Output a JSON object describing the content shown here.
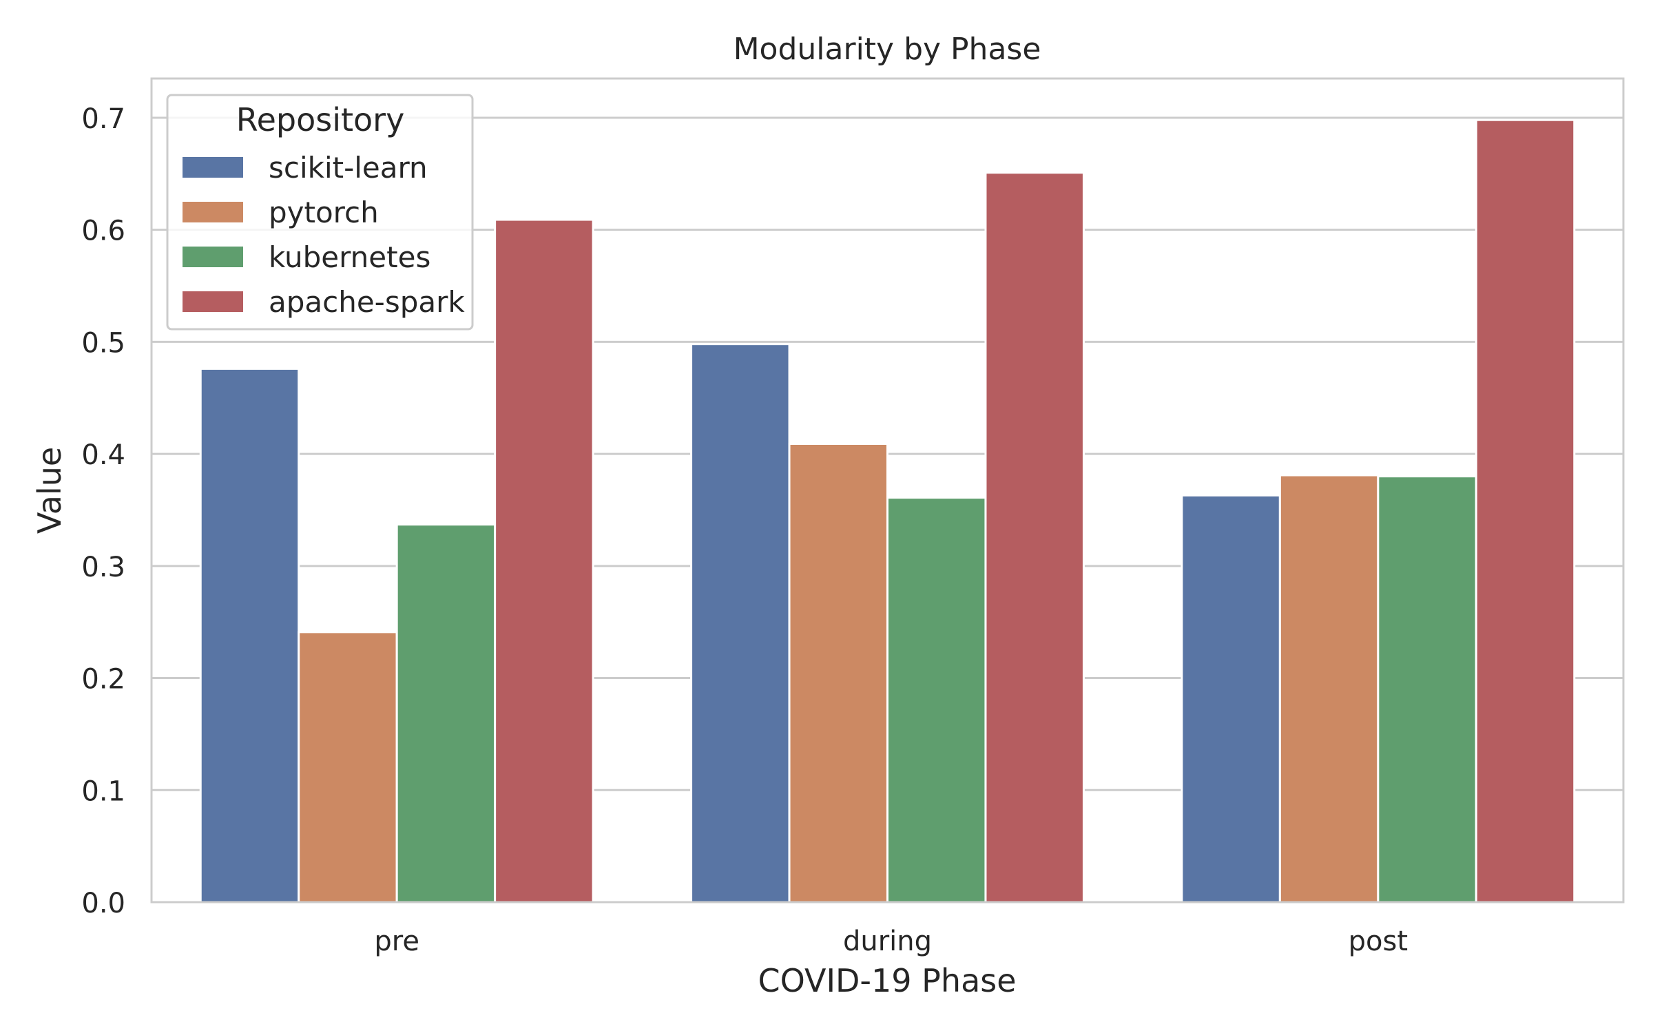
{
  "chart_data": {
    "type": "bar",
    "title": "Modularity by Phase",
    "xlabel": "COVID-19 Phase",
    "ylabel": "Value",
    "categories": [
      "pre",
      "during",
      "post"
    ],
    "ylim": [
      0,
      0.735
    ],
    "yticks": [
      0.0,
      0.1,
      0.2,
      0.3,
      0.4,
      0.5,
      0.6,
      0.7
    ],
    "ytick_labels": [
      "0.0",
      "0.1",
      "0.2",
      "0.3",
      "0.4",
      "0.5",
      "0.6",
      "0.7"
    ],
    "grid": true,
    "legend": {
      "title": "Repository",
      "placement": "top-left"
    },
    "series": [
      {
        "name": "scikit-learn",
        "color": "#5975a4",
        "values": [
          0.476,
          0.498,
          0.363
        ]
      },
      {
        "name": "pytorch",
        "color": "#cc8963",
        "values": [
          0.241,
          0.409,
          0.381
        ]
      },
      {
        "name": "kubernetes",
        "color": "#5f9e6e",
        "values": [
          0.337,
          0.361,
          0.38
        ]
      },
      {
        "name": "apache-spark",
        "color": "#b55d60",
        "values": [
          0.609,
          0.651,
          0.698
        ]
      }
    ]
  }
}
